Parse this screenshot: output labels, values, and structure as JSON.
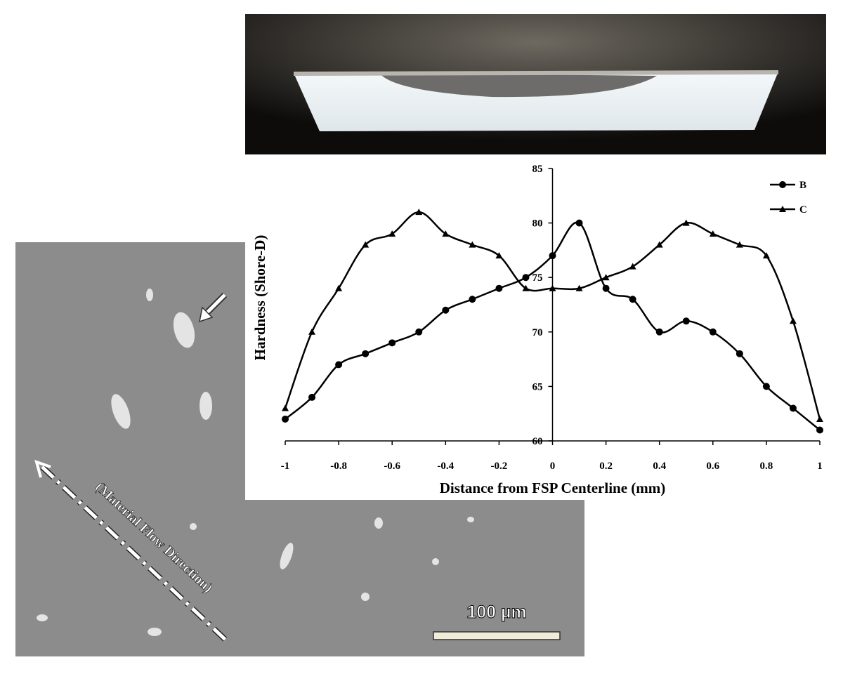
{
  "chart_data": {
    "type": "line",
    "x_label": "Distance from FSP Centerline (mm)",
    "y_label": "Hardness (Shore-D)",
    "x": [
      -1,
      -0.9,
      -0.8,
      -0.7,
      -0.6,
      -0.5,
      -0.4,
      -0.3,
      -0.2,
      -0.1,
      0,
      0.1,
      0.2,
      0.3,
      0.4,
      0.5,
      0.6,
      0.7,
      0.8,
      0.9,
      1
    ],
    "series": [
      {
        "name": "B",
        "color": "#000000",
        "marker": "circle",
        "values": [
          62,
          64,
          67,
          68,
          69,
          70,
          72,
          73,
          74,
          75,
          77,
          80,
          74,
          73,
          70,
          71,
          70,
          68,
          65,
          63,
          61
        ]
      },
      {
        "name": "C",
        "color": "#000000",
        "marker": "triangle",
        "values": [
          63,
          70,
          74,
          78,
          79,
          81,
          79,
          78,
          77,
          74,
          74,
          74,
          75,
          76,
          78,
          80,
          79,
          78,
          77,
          71,
          62
        ]
      }
    ],
    "xlim": [
      -1,
      1
    ],
    "xticks": [
      -1,
      -0.8,
      -0.6,
      -0.4,
      -0.2,
      0,
      0.2,
      0.4,
      0.6,
      0.8,
      1
    ],
    "ylim": [
      60,
      85
    ],
    "yticks": [
      60,
      65,
      70,
      75,
      80,
      85
    ],
    "legend": "top-right",
    "grid": false
  },
  "micrograph": {
    "annotation": "(Material Flow Direction)",
    "scale_bar": "100 µm"
  }
}
